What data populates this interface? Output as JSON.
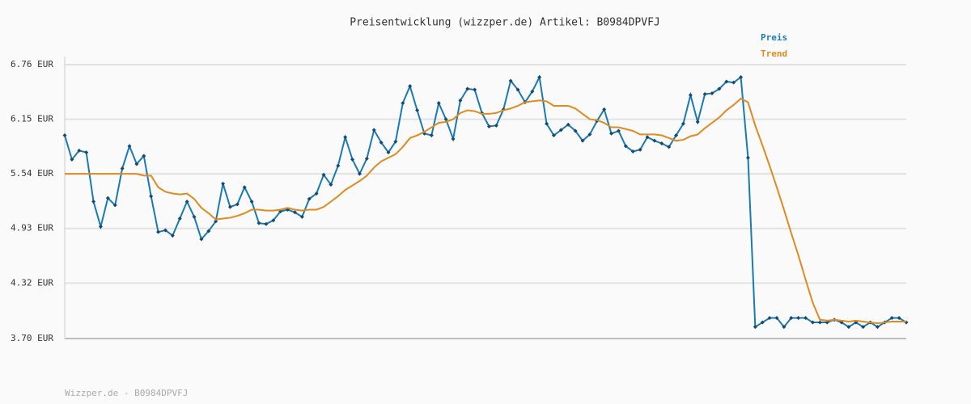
{
  "chart_data": {
    "type": "line",
    "title": "Preisentwicklung (wizzper.de) Artikel: B0984DPVFJ",
    "footer": "Wizzper.de - B0984DPVFJ",
    "ylim": [
      3.7,
      6.76
    ],
    "yticks": [
      {
        "value": 3.7,
        "label": "3.70 EUR"
      },
      {
        "value": 4.32,
        "label": "4.32 EUR"
      },
      {
        "value": 4.93,
        "label": "4.93 EUR"
      },
      {
        "value": 5.54,
        "label": "5.54 EUR"
      },
      {
        "value": 6.15,
        "label": "6.15 EUR"
      },
      {
        "value": 6.76,
        "label": "6.76 EUR"
      }
    ],
    "grid": true,
    "series": [
      {
        "name": "Preis",
        "color": "#1a7ab5",
        "markers": true,
        "values": [
          5.97,
          5.7,
          5.8,
          5.78,
          5.23,
          4.95,
          5.27,
          5.19,
          5.6,
          5.85,
          5.65,
          5.74,
          5.29,
          4.89,
          4.91,
          4.85,
          5.04,
          5.23,
          5.06,
          4.81,
          4.9,
          5.01,
          5.43,
          5.17,
          5.2,
          5.39,
          5.23,
          4.99,
          4.98,
          5.02,
          5.12,
          5.14,
          5.11,
          5.06,
          5.26,
          5.32,
          5.53,
          5.42,
          5.63,
          5.95,
          5.7,
          5.54,
          5.71,
          6.03,
          5.89,
          5.78,
          5.9,
          6.33,
          6.52,
          6.25,
          5.99,
          5.97,
          6.33,
          6.15,
          5.93,
          6.36,
          6.49,
          6.48,
          6.22,
          6.07,
          6.08,
          6.26,
          6.58,
          6.48,
          6.34,
          6.46,
          6.62,
          6.1,
          5.97,
          6.03,
          6.09,
          6.02,
          5.91,
          5.98,
          6.13,
          6.26,
          5.99,
          6.02,
          5.85,
          5.79,
          5.81,
          5.95,
          5.91,
          5.88,
          5.84,
          5.97,
          6.1,
          6.42,
          6.12,
          6.43,
          6.44,
          6.49,
          6.57,
          6.56,
          6.62,
          5.72,
          3.83,
          3.88,
          3.93,
          3.93,
          3.83,
          3.93,
          3.93,
          3.93,
          3.88,
          3.88,
          3.88,
          3.91,
          3.88,
          3.83,
          3.88,
          3.83,
          3.88,
          3.83,
          3.88,
          3.93,
          3.93,
          3.88
        ]
      },
      {
        "name": "Trend",
        "color": "#e08a1f",
        "markers": false,
        "values": [
          5.54,
          5.54,
          5.54,
          5.54,
          5.54,
          5.54,
          5.54,
          5.54,
          5.54,
          5.54,
          5.54,
          5.52,
          5.52,
          5.39,
          5.34,
          5.32,
          5.31,
          5.32,
          5.26,
          5.16,
          5.1,
          5.03,
          5.04,
          5.05,
          5.07,
          5.1,
          5.14,
          5.14,
          5.13,
          5.13,
          5.14,
          5.16,
          5.14,
          5.13,
          5.14,
          5.14,
          5.17,
          5.23,
          5.29,
          5.36,
          5.41,
          5.46,
          5.52,
          5.61,
          5.68,
          5.72,
          5.76,
          5.84,
          5.94,
          5.97,
          6.01,
          6.06,
          6.11,
          6.12,
          6.15,
          6.22,
          6.25,
          6.24,
          6.21,
          6.21,
          6.22,
          6.25,
          6.27,
          6.3,
          6.34,
          6.35,
          6.36,
          6.35,
          6.3,
          6.3,
          6.3,
          6.27,
          6.21,
          6.15,
          6.14,
          6.11,
          6.06,
          6.06,
          6.04,
          6.02,
          5.98,
          5.98,
          5.98,
          5.97,
          5.94,
          5.91,
          5.92,
          5.96,
          5.98,
          6.05,
          6.11,
          6.17,
          6.25,
          6.31,
          6.38,
          6.34,
          6.08,
          5.86,
          5.63,
          5.39,
          5.14,
          4.88,
          4.63,
          4.36,
          4.1,
          3.91,
          3.9,
          3.91,
          3.9,
          3.89,
          3.9,
          3.89,
          3.88,
          3.87,
          3.88,
          3.89,
          3.89,
          3.89
        ]
      }
    ]
  }
}
